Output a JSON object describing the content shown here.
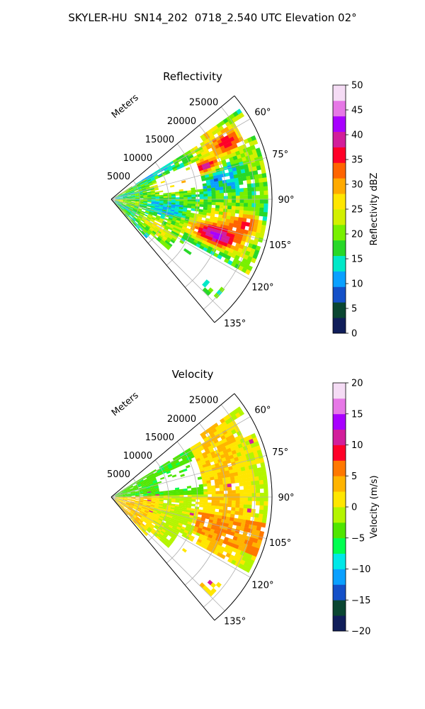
{
  "suptitle": "SKYLER-HU  SN14_202  0718_2.540 UTC Elevation 02°",
  "chart_data": [
    {
      "type": "heatmap",
      "projection": "polar sector (PPI)",
      "title": "Reflectivity",
      "radial_axis_label": "Meters",
      "radial_ticks": [
        5000,
        10000,
        15000,
        20000,
        25000
      ],
      "radial_tick_labels": [
        "5000",
        "10000",
        "15000",
        "20000",
        "25000"
      ],
      "rlim": [
        0,
        28000
      ],
      "azimuth_ticks": [
        60,
        75,
        90,
        105,
        120,
        135
      ],
      "azimuth_tick_labels": [
        "60°",
        "75°",
        "90°",
        "105°",
        "120°",
        "135°"
      ],
      "azimuth_range_deg": [
        50,
        140
      ],
      "grid": true,
      "colorbar": {
        "label": "Reflectivity dBZ",
        "range": [
          0,
          50
        ],
        "ticks": [
          0,
          5,
          10,
          15,
          20,
          25,
          30,
          35,
          40,
          45,
          50
        ],
        "tick_labels": [
          "0",
          "5",
          "10",
          "15",
          "20",
          "25",
          "30",
          "35",
          "40",
          "45",
          "50"
        ],
        "colors": [
          "#101e5a",
          "#0a4632",
          "#1450c8",
          "#0aa0ff",
          "#00e8c8",
          "#28d828",
          "#78f000",
          "#d2f000",
          "#ffe600",
          "#ffaa00",
          "#ff6400",
          "#ff0028",
          "#d21e9b",
          "#a800ff",
          "#e678e6",
          "#f5dcf5"
        ]
      }
    },
    {
      "type": "heatmap",
      "projection": "polar sector (PPI)",
      "title": "Velocity",
      "radial_axis_label": "Meters",
      "radial_ticks": [
        5000,
        10000,
        15000,
        20000,
        25000
      ],
      "radial_tick_labels": [
        "5000",
        "10000",
        "15000",
        "20000",
        "25000"
      ],
      "rlim": [
        0,
        28000
      ],
      "azimuth_ticks": [
        60,
        75,
        90,
        105,
        120,
        135
      ],
      "azimuth_tick_labels": [
        "60°",
        "75°",
        "90°",
        "105°",
        "120°",
        "135°"
      ],
      "azimuth_range_deg": [
        50,
        140
      ],
      "grid": true,
      "colorbar": {
        "label": "Velocity (m/s)",
        "range": [
          -20,
          20
        ],
        "ticks": [
          -20,
          -15,
          -10,
          -5,
          0,
          5,
          10,
          15,
          20
        ],
        "tick_labels": [
          "−20",
          "−15",
          "−10",
          "−5",
          "0",
          "5",
          "10",
          "15",
          "20"
        ],
        "colors": [
          "#101e5a",
          "#0a4632",
          "#1450c8",
          "#0aa0ff",
          "#00e8e8",
          "#00ff50",
          "#50e600",
          "#b4f500",
          "#ffe600",
          "#ffb400",
          "#ff7800",
          "#ff0028",
          "#d21e9b",
          "#a800ff",
          "#e678e6",
          "#f5dcf5"
        ]
      }
    }
  ]
}
